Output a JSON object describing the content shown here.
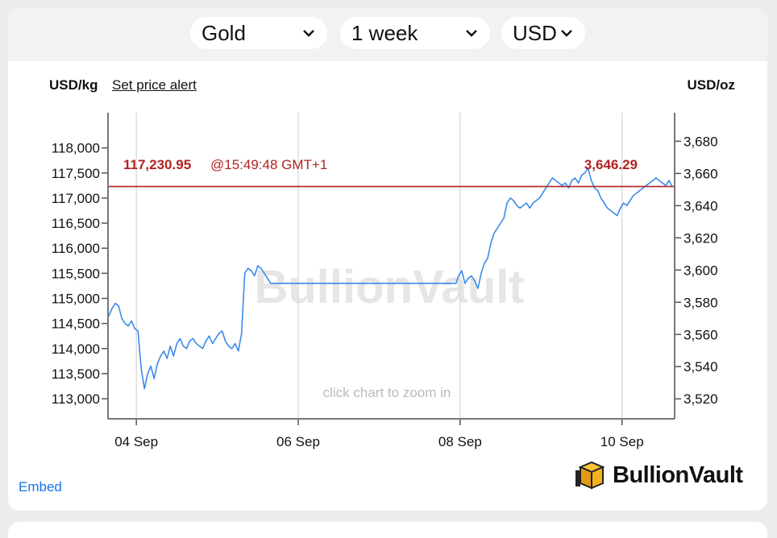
{
  "toolbar": {
    "metal": "Gold",
    "period": "1 week",
    "currency": "USD"
  },
  "header": {
    "unit_left": "USD/kg",
    "alert_link": "Set price alert",
    "unit_right": "USD/oz"
  },
  "footer": {
    "embed": "Embed",
    "brand": "BullionVault"
  },
  "colors": {
    "series": "#3b8beb",
    "current_line": "#b22222",
    "watermark": "#e6e6e6",
    "grid": "#dddddd"
  },
  "chart_data": {
    "type": "line",
    "watermark": "BullionVault",
    "hint": "click chart to zoom in",
    "x_ticks": [
      "04 Sep",
      "06 Sep",
      "08 Sep",
      "10 Sep"
    ],
    "y_left_label": "USD/kg",
    "y_right_label": "USD/oz",
    "y_left_ticks": [
      "113,000",
      "113,500",
      "114,000",
      "114,500",
      "115,000",
      "115,500",
      "116,000",
      "116,500",
      "117,000",
      "117,500",
      "118,000"
    ],
    "y_left_tick_values": [
      113000,
      113500,
      114000,
      114500,
      115000,
      115500,
      116000,
      116500,
      117000,
      117500,
      118000
    ],
    "y_right_ticks": [
      "3,520",
      "3,540",
      "3,560",
      "3,580",
      "3,600",
      "3,620",
      "3,640",
      "3,660",
      "3,680"
    ],
    "y_right_tick_values": [
      3520,
      3540,
      3560,
      3580,
      3600,
      3620,
      3640,
      3660,
      3680
    ],
    "ylim_left": [
      112600,
      118700
    ],
    "ylim_right": [
      3507.6,
      3697.7
    ],
    "x_range_days": [
      3.65,
      10.65
    ],
    "x_tick_days": [
      4,
      6,
      8,
      10
    ],
    "current": {
      "usd_kg": "117,230.95",
      "time": "@15:49:48 GMT+1",
      "usd_oz": "3,646.29",
      "value_kg": 117230.95
    },
    "series": [
      {
        "x": [
          3.66,
          3.7,
          3.74,
          3.78,
          3.82,
          3.86,
          3.9,
          3.94,
          3.98,
          4.02,
          4.06,
          4.1,
          4.14,
          4.18,
          4.22,
          4.26,
          4.3,
          4.34,
          4.38,
          4.42,
          4.46,
          4.5,
          4.54,
          4.58,
          4.62,
          4.66,
          4.7,
          4.74,
          4.78,
          4.82,
          4.86,
          4.9,
          4.94,
          4.98,
          5.02,
          5.06,
          5.1,
          5.14,
          5.18,
          5.22,
          5.26,
          5.3,
          5.34,
          5.38,
          5.42,
          5.46,
          5.5,
          5.54,
          5.58,
          5.62,
          5.66,
          5.7,
          5.74,
          5.78,
          5.82,
          5.86,
          5.9,
          6.0,
          6.5,
          7.0,
          7.5,
          7.95,
          7.98,
          8.02,
          8.06,
          8.1,
          8.14,
          8.18,
          8.22,
          8.26,
          8.3,
          8.34,
          8.38,
          8.42,
          8.46,
          8.5,
          8.54,
          8.58,
          8.62,
          8.66,
          8.7,
          8.74,
          8.78,
          8.82,
          8.86,
          8.9,
          8.94,
          8.98,
          9.02,
          9.06,
          9.1,
          9.14,
          9.18,
          9.22,
          9.26,
          9.3,
          9.34,
          9.38,
          9.42,
          9.46,
          9.5,
          9.54,
          9.58,
          9.62,
          9.66,
          9.7,
          9.74,
          9.78,
          9.82,
          9.86,
          9.9,
          9.94,
          9.98,
          10.02,
          10.06,
          10.1,
          10.14,
          10.18,
          10.22,
          10.26,
          10.3,
          10.34,
          10.38,
          10.42,
          10.46,
          10.5,
          10.54,
          10.58,
          10.62
        ],
        "y": [
          114650,
          114800,
          114900,
          114850,
          114600,
          114500,
          114450,
          114550,
          114400,
          114350,
          113600,
          113200,
          113500,
          113650,
          113400,
          113700,
          113850,
          113950,
          113800,
          114050,
          113850,
          114100,
          114200,
          114050,
          114000,
          114150,
          114200,
          114100,
          114050,
          114000,
          114150,
          114250,
          114100,
          114200,
          114300,
          114350,
          114150,
          114050,
          114000,
          114100,
          113950,
          114300,
          115500,
          115600,
          115550,
          115450,
          115650,
          115600,
          115500,
          115400,
          115300,
          115300,
          115300,
          115300,
          115300,
          115300,
          115300,
          115300,
          115300,
          115300,
          115300,
          115300,
          115450,
          115550,
          115300,
          115400,
          115450,
          115350,
          115200,
          115500,
          115700,
          115800,
          116100,
          116300,
          116400,
          116500,
          116600,
          116900,
          117000,
          116950,
          116850,
          116800,
          116850,
          116900,
          116800,
          116900,
          116950,
          117000,
          117100,
          117200,
          117300,
          117400,
          117350,
          117300,
          117250,
          117300,
          117200,
          117350,
          117400,
          117300,
          117450,
          117500,
          117600,
          117350,
          117200,
          117150,
          117000,
          116900,
          116800,
          116750,
          116700,
          116650,
          116800,
          116900,
          116850,
          116950,
          117050,
          117100,
          117150,
          117200,
          117250,
          117300,
          117350,
          117400,
          117350,
          117300,
          117250,
          117350,
          117230
        ]
      }
    ]
  }
}
